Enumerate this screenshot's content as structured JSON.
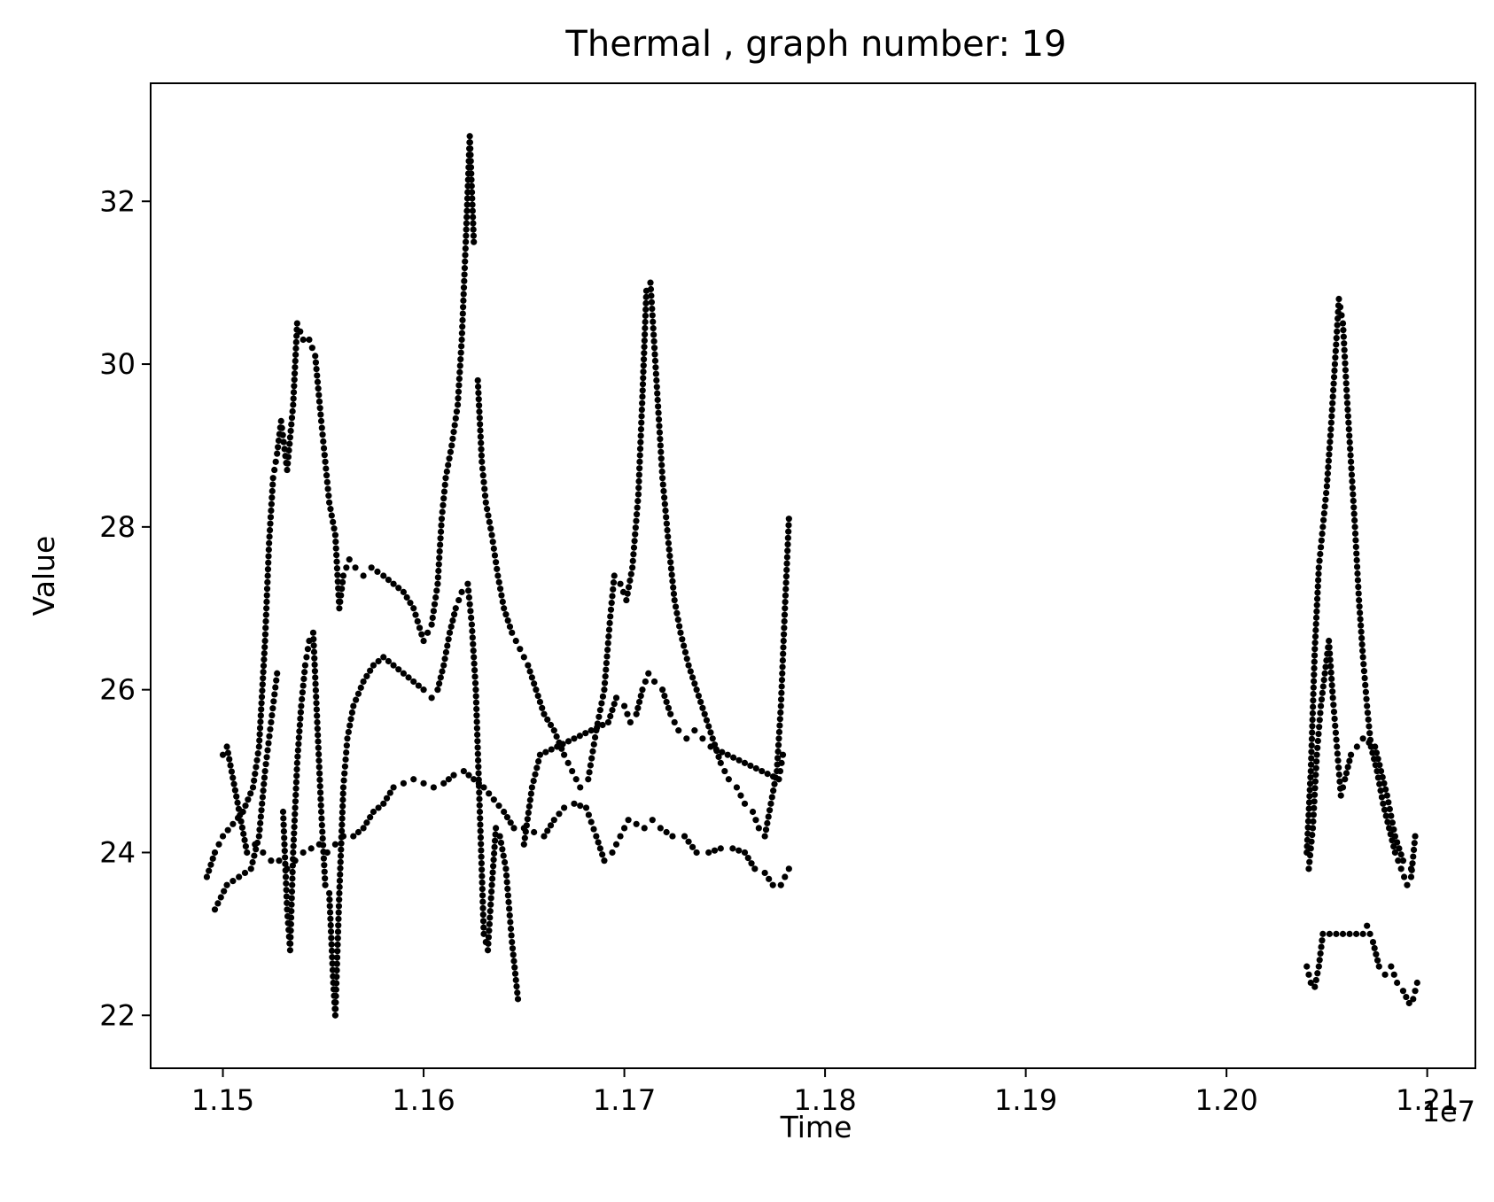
{
  "chart_data": {
    "type": "scatter",
    "title": "Thermal , graph number: 19",
    "xlabel": "Time",
    "ylabel": "Value",
    "x_offset_label": "1e7",
    "x_tick_labels": [
      "1.15",
      "1.16",
      "1.17",
      "1.18",
      "1.19",
      "1.20",
      "1.21"
    ],
    "x_ticks": [
      11500000,
      11600000,
      11700000,
      11800000,
      11900000,
      12000000,
      12100000
    ],
    "y_ticks": [
      22,
      24,
      26,
      28,
      30,
      32
    ],
    "xlim": [
      11464000,
      12124000
    ],
    "ylim": [
      21.35,
      33.45
    ],
    "grid": false,
    "marker_color": "#000000",
    "series": [
      {
        "trace_points": [
          [
            11492000,
            23.7
          ],
          [
            11496000,
            24.0
          ],
          [
            11500000,
            24.2
          ],
          [
            11505000,
            24.35
          ],
          [
            11510000,
            24.5
          ],
          [
            11515000,
            24.8
          ],
          [
            11518000,
            25.3
          ],
          [
            11521000,
            26.6
          ],
          [
            11523000,
            27.8
          ],
          [
            11525000,
            28.6
          ],
          [
            11527000,
            28.9
          ],
          [
            11529000,
            29.3
          ],
          [
            11532000,
            28.7
          ],
          [
            11535000,
            29.5
          ],
          [
            11537000,
            30.5
          ],
          [
            11540000,
            30.3
          ],
          [
            11543000,
            30.3
          ],
          [
            11546000,
            30.1
          ],
          [
            11549000,
            29.3
          ],
          [
            11551000,
            28.8
          ],
          [
            11553000,
            28.3
          ],
          [
            11556000,
            27.9
          ],
          [
            11558000,
            27.0
          ],
          [
            11560000,
            27.4
          ],
          [
            11563000,
            27.6
          ],
          [
            11566000,
            27.5
          ],
          [
            11570000,
            27.4
          ],
          [
            11574000,
            27.5
          ],
          [
            11580000,
            27.4
          ],
          [
            11585000,
            27.3
          ],
          [
            11590000,
            27.2
          ],
          [
            11595000,
            27.0
          ],
          [
            11600000,
            26.6
          ],
          [
            11604000,
            26.8
          ],
          [
            11607000,
            27.3
          ],
          [
            11609000,
            28.1
          ],
          [
            11611000,
            28.6
          ],
          [
            11614000,
            29.0
          ],
          [
            11617000,
            29.5
          ],
          [
            11619000,
            30.3
          ],
          [
            11621000,
            31.5
          ],
          [
            11623000,
            32.8
          ],
          [
            11625000,
            31.5
          ],
          [
            11627000,
            29.8
          ],
          [
            11629000,
            28.8
          ],
          [
            11631000,
            28.3
          ],
          [
            11634000,
            27.9
          ],
          [
            11637000,
            27.4
          ],
          [
            11640000,
            27.0
          ],
          [
            11644000,
            26.7
          ],
          [
            11648000,
            26.5
          ],
          [
            11652000,
            26.3
          ],
          [
            11656000,
            26.0
          ],
          [
            11660000,
            25.7
          ],
          [
            11665000,
            25.5
          ],
          [
            11670000,
            25.2
          ],
          [
            11674000,
            25.0
          ],
          [
            11678000,
            24.8
          ],
          [
            11682000,
            24.9
          ],
          [
            11686000,
            25.5
          ],
          [
            11690000,
            26.0
          ],
          [
            11693000,
            26.9
          ],
          [
            11695000,
            27.4
          ],
          [
            11698000,
            27.3
          ],
          [
            11701000,
            27.1
          ],
          [
            11704000,
            27.5
          ],
          [
            11707000,
            28.4
          ],
          [
            11709000,
            29.6
          ],
          [
            11711000,
            30.9
          ],
          [
            11713000,
            31.0
          ],
          [
            11715000,
            30.2
          ],
          [
            11717000,
            29.4
          ],
          [
            11719000,
            28.6
          ],
          [
            11722000,
            27.8
          ],
          [
            11725000,
            27.1
          ],
          [
            11728000,
            26.7
          ],
          [
            11732000,
            26.3
          ],
          [
            11736000,
            26.0
          ],
          [
            11740000,
            25.7
          ],
          [
            11744000,
            25.4
          ],
          [
            11748000,
            25.1
          ],
          [
            11752000,
            24.9
          ],
          [
            11756000,
            24.8
          ],
          [
            11760000,
            24.6
          ],
          [
            11764000,
            24.5
          ],
          [
            11767000,
            24.3
          ],
          [
            11770000,
            24.2
          ],
          [
            11773000,
            24.6
          ],
          [
            11776000,
            25.0
          ],
          [
            11778000,
            25.8
          ],
          [
            11780000,
            27.0
          ],
          [
            11782000,
            28.1
          ],
          [
            11496000,
            23.3
          ],
          [
            11502000,
            23.6
          ],
          [
            11508000,
            23.7
          ],
          [
            11514000,
            23.8
          ],
          [
            11518000,
            24.2
          ],
          [
            11521000,
            25.0
          ],
          [
            11524000,
            25.6
          ],
          [
            11527000,
            26.2
          ],
          [
            11530000,
            24.5
          ],
          [
            11532000,
            23.3
          ],
          [
            11533500,
            22.8
          ],
          [
            11535000,
            24.0
          ],
          [
            11537000,
            25.1
          ],
          [
            11539000,
            25.8
          ],
          [
            11541000,
            26.3
          ],
          [
            11543000,
            26.6
          ],
          [
            11545000,
            26.7
          ],
          [
            11547000,
            25.6
          ],
          [
            11549000,
            24.5
          ],
          [
            11551000,
            23.6
          ],
          [
            11553000,
            23.5
          ],
          [
            11555000,
            22.4
          ],
          [
            11556000,
            22.0
          ],
          [
            11558000,
            23.5
          ],
          [
            11560000,
            24.8
          ],
          [
            11562000,
            25.4
          ],
          [
            11565000,
            25.8
          ],
          [
            11570000,
            26.1
          ],
          [
            11575000,
            26.3
          ],
          [
            11580000,
            26.4
          ],
          [
            11585000,
            26.3
          ],
          [
            11590000,
            26.2
          ],
          [
            11595000,
            26.1
          ],
          [
            11600000,
            26.0
          ],
          [
            11604000,
            25.9
          ],
          [
            11607000,
            26.0
          ],
          [
            11610000,
            26.3
          ],
          [
            11613000,
            26.7
          ],
          [
            11616000,
            27.0
          ],
          [
            11619000,
            27.2
          ],
          [
            11622000,
            27.3
          ],
          [
            11624000,
            26.8
          ],
          [
            11626000,
            26.0
          ],
          [
            11628000,
            24.5
          ],
          [
            11630000,
            23.0
          ],
          [
            11632000,
            22.8
          ],
          [
            11634000,
            23.6
          ],
          [
            11636000,
            24.3
          ],
          [
            11638000,
            24.2
          ],
          [
            11641000,
            23.8
          ],
          [
            11644000,
            22.9
          ],
          [
            11647000,
            22.2
          ],
          [
            11650000,
            24.1
          ],
          [
            11654000,
            24.8
          ],
          [
            11658000,
            25.2
          ],
          [
            11692000,
            25.6
          ],
          [
            11696000,
            25.9
          ],
          [
            11700000,
            25.8
          ],
          [
            11703000,
            25.6
          ],
          [
            11706000,
            25.7
          ],
          [
            11709000,
            26.0
          ],
          [
            11712000,
            26.2
          ],
          [
            11715000,
            26.1
          ],
          [
            11719000,
            26.0
          ],
          [
            11723000,
            25.7
          ],
          [
            11727000,
            25.5
          ],
          [
            11731000,
            25.4
          ],
          [
            11735000,
            25.5
          ],
          [
            11739000,
            25.4
          ],
          [
            11743000,
            25.3
          ],
          [
            11777000,
            24.9
          ],
          [
            11779000,
            25.2
          ],
          [
            11500000,
            25.2
          ],
          [
            11502000,
            25.3
          ],
          [
            11512000,
            24.0
          ],
          [
            11516000,
            24.1
          ],
          [
            11520000,
            24.0
          ],
          [
            11524000,
            23.9
          ],
          [
            11528000,
            23.9
          ],
          [
            11532000,
            23.8
          ],
          [
            11536000,
            23.9
          ],
          [
            11540000,
            24.0
          ],
          [
            11544000,
            24.05
          ],
          [
            11548000,
            24.1
          ],
          [
            11552000,
            24.0
          ],
          [
            11556000,
            24.1
          ],
          [
            11560000,
            24.2
          ],
          [
            11565000,
            24.2
          ],
          [
            11570000,
            24.3
          ],
          [
            11575000,
            24.5
          ],
          [
            11580000,
            24.6
          ],
          [
            11585000,
            24.8
          ],
          [
            11590000,
            24.85
          ],
          [
            11595000,
            24.9
          ],
          [
            11600000,
            24.85
          ],
          [
            11605000,
            24.8
          ],
          [
            11610000,
            24.85
          ],
          [
            11615000,
            24.95
          ],
          [
            11620000,
            25.0
          ],
          [
            11625000,
            24.9
          ],
          [
            11630000,
            24.8
          ],
          [
            11635000,
            24.65
          ],
          [
            11640000,
            24.5
          ],
          [
            11645000,
            24.3
          ],
          [
            11650000,
            24.3
          ],
          [
            11655000,
            24.25
          ],
          [
            11660000,
            24.2
          ],
          [
            11665000,
            24.4
          ],
          [
            11670000,
            24.55
          ],
          [
            11675000,
            24.6
          ],
          [
            11681000,
            24.55
          ],
          [
            11686000,
            24.2
          ],
          [
            11690000,
            23.9
          ],
          [
            11694000,
            24.0
          ],
          [
            11698000,
            24.2
          ],
          [
            11702000,
            24.4
          ],
          [
            11706000,
            24.35
          ],
          [
            11710000,
            24.3
          ],
          [
            11714000,
            24.4
          ],
          [
            11718000,
            24.3
          ],
          [
            11724000,
            24.2
          ],
          [
            11730000,
            24.2
          ],
          [
            11736000,
            24.0
          ],
          [
            11742000,
            24.0
          ],
          [
            11748000,
            24.05
          ],
          [
            11754000,
            24.05
          ],
          [
            11760000,
            24.0
          ],
          [
            11765000,
            23.8
          ],
          [
            11770000,
            23.75
          ],
          [
            11774000,
            23.6
          ],
          [
            11778000,
            23.6
          ],
          [
            11782000,
            23.8
          ],
          [
            12040000,
            24.0
          ],
          [
            12042000,
            25.0
          ],
          [
            12044000,
            26.5
          ],
          [
            12046000,
            27.5
          ],
          [
            12048000,
            28.0
          ],
          [
            12050000,
            28.5
          ],
          [
            12052000,
            29.2
          ],
          [
            12054000,
            30.0
          ],
          [
            12056000,
            30.8
          ],
          [
            12058000,
            30.5
          ],
          [
            12060000,
            29.6
          ],
          [
            12062000,
            28.8
          ],
          [
            12064000,
            28.0
          ],
          [
            12066000,
            27.1
          ],
          [
            12068000,
            26.4
          ],
          [
            12070000,
            25.8
          ],
          [
            12072000,
            25.3
          ],
          [
            12075000,
            25.0
          ],
          [
            12078000,
            24.6
          ],
          [
            12081000,
            24.3
          ],
          [
            12084000,
            24.0
          ],
          [
            12087000,
            23.8
          ],
          [
            12090000,
            23.6
          ],
          [
            12092000,
            23.7
          ],
          [
            12094000,
            24.2
          ],
          [
            12041000,
            23.8
          ],
          [
            12043000,
            24.3
          ],
          [
            12045000,
            25.2
          ],
          [
            12047000,
            25.8
          ],
          [
            12049000,
            26.2
          ],
          [
            12051000,
            26.6
          ],
          [
            12053000,
            25.9
          ],
          [
            12055000,
            25.3
          ],
          [
            12057000,
            24.7
          ],
          [
            12059000,
            24.9
          ],
          [
            12062000,
            25.2
          ],
          [
            12065000,
            25.3
          ],
          [
            12068000,
            25.4
          ],
          [
            12071000,
            25.35
          ],
          [
            12074000,
            25.3
          ],
          [
            12077000,
            25.0
          ],
          [
            12080000,
            24.7
          ],
          [
            12084000,
            24.2
          ],
          [
            12088000,
            23.9
          ],
          [
            12092000,
            23.8
          ],
          [
            12040000,
            22.6
          ],
          [
            12042000,
            22.4
          ],
          [
            12044000,
            22.35
          ],
          [
            12046000,
            22.6
          ],
          [
            12048000,
            23.0
          ],
          [
            12068000,
            23.0
          ],
          [
            12070000,
            23.1
          ],
          [
            12073000,
            22.9
          ],
          [
            12076000,
            22.6
          ],
          [
            12079000,
            22.5
          ],
          [
            12082000,
            22.6
          ],
          [
            12085000,
            22.4
          ],
          [
            12088000,
            22.3
          ],
          [
            12091000,
            22.15
          ],
          [
            12093000,
            22.2
          ],
          [
            12095000,
            22.4
          ]
        ]
      }
    ]
  }
}
